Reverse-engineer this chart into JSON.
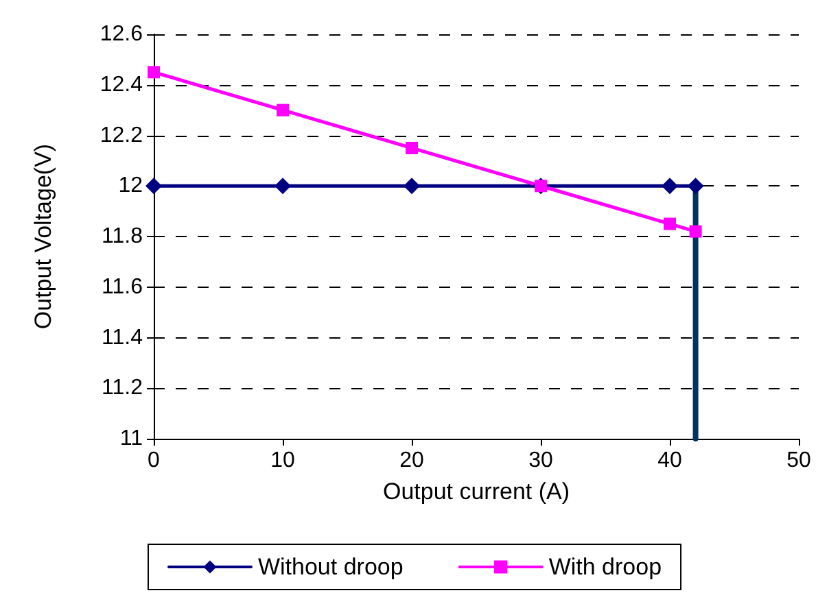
{
  "chart_data": {
    "type": "line",
    "xlabel": "Output current (A)",
    "ylabel": "Output Voltage(V)",
    "xlim": [
      0,
      50
    ],
    "xticks": [
      0,
      10,
      20,
      30,
      40,
      50
    ],
    "ylim": [
      11,
      12.6
    ],
    "yticks": [
      11,
      11.2,
      11.4,
      11.6,
      11.8,
      12,
      12.2,
      12.4,
      12.6
    ],
    "grid": "y",
    "legend": "bottom",
    "line_style": "solid",
    "series": [
      {
        "name": "Without droop",
        "color": "#000080",
        "marker": "diamond",
        "x": [
          0,
          10,
          20,
          30,
          40,
          42
        ],
        "values": [
          12,
          12,
          12,
          12,
          12,
          12
        ]
      },
      {
        "name": "With droop",
        "color": "#ff00ff",
        "marker": "square",
        "x": [
          0,
          10,
          20,
          30,
          40,
          42
        ],
        "values": [
          12.45,
          12.3,
          12.15,
          12,
          11.85,
          11.82
        ]
      },
      {
        "color": "#003366",
        "marker": "none",
        "x": [
          42,
          42
        ],
        "values": [
          12,
          11
        ]
      }
    ]
  }
}
